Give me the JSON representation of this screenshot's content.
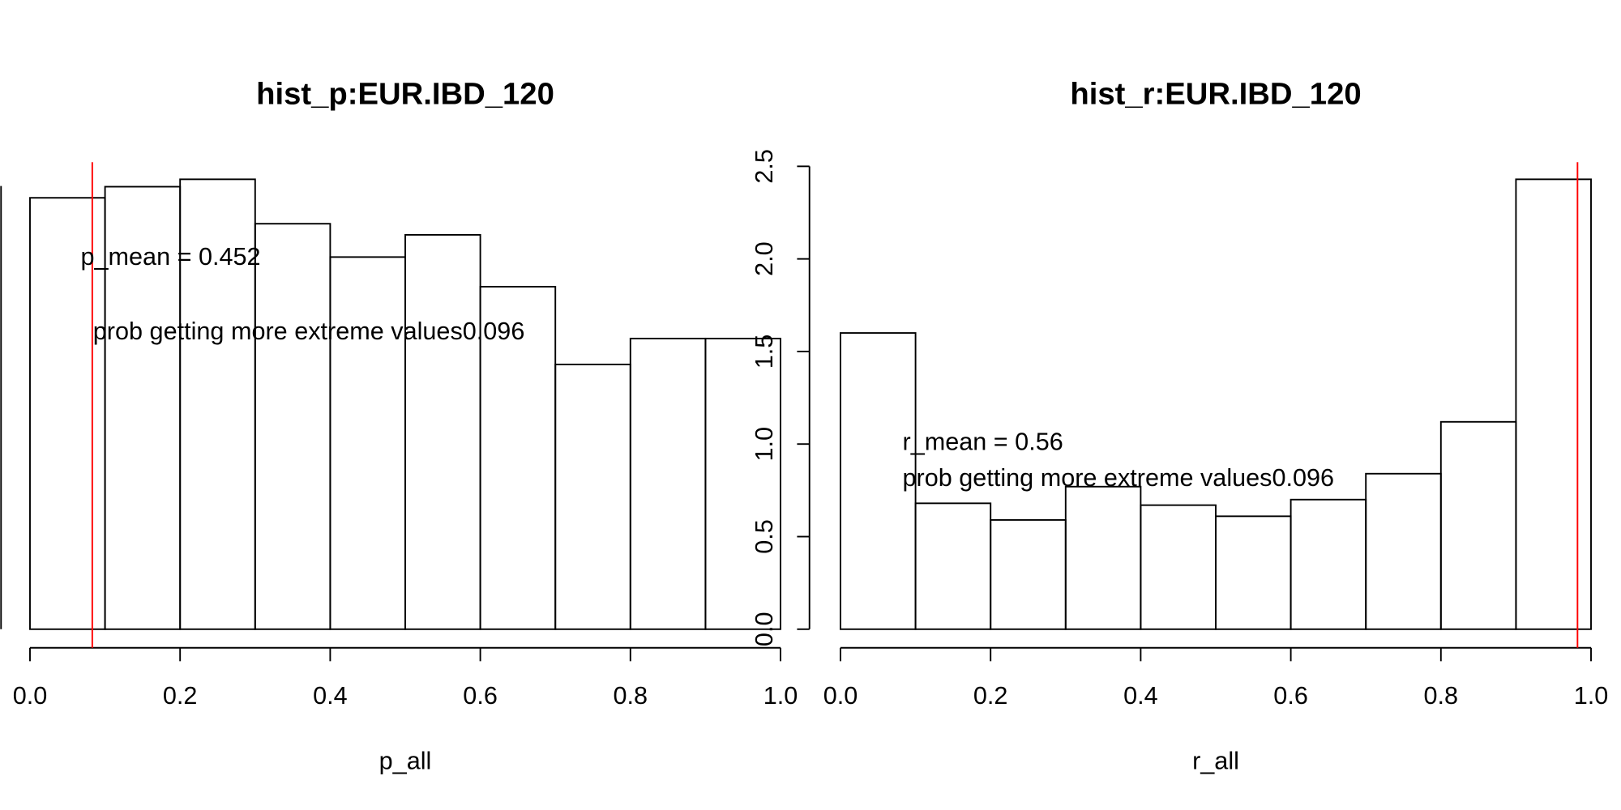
{
  "chart_data": [
    {
      "type": "histogram",
      "title": "hist_p:EUR.IBD_120",
      "xlabel": "p_all",
      "bins": [
        0,
        0.1,
        0.2,
        0.3,
        0.4,
        0.5,
        0.6,
        0.7,
        0.8,
        0.9,
        1.0
      ],
      "values": [
        2.33,
        2.39,
        2.43,
        2.19,
        2.01,
        2.13,
        1.85,
        1.43,
        1.57,
        1.57
      ],
      "edgecolor": "#000000",
      "xlim": [
        0,
        1
      ],
      "ylim": [
        0,
        2.5
      ],
      "xticks": [
        {
          "value": 0,
          "label": "0.0"
        },
        0.2,
        0.4,
        0.6,
        0.8,
        {
          "value": 1,
          "label": "1.0"
        }
      ],
      "vline": 0.083,
      "vline_color": "#ff0000",
      "annotations": [
        "p_mean = 0.452",
        "prob getting more extreme values0.096"
      ]
    },
    {
      "type": "histogram",
      "title": "hist_r:EUR.IBD_120",
      "xlabel": "r_all",
      "bins": [
        0,
        0.1,
        0.2,
        0.3,
        0.4,
        0.5,
        0.6,
        0.7,
        0.8,
        0.9,
        1.0
      ],
      "values": [
        1.6,
        0.68,
        0.59,
        0.77,
        0.67,
        0.61,
        0.7,
        0.84,
        1.12,
        2.43
      ],
      "edgecolor": "#000000",
      "xlim": [
        0,
        1
      ],
      "ylim": [
        0,
        2.5
      ],
      "xticks": [
        {
          "value": 0,
          "label": "0.0"
        },
        0.2,
        0.4,
        0.6,
        0.8,
        {
          "value": 1,
          "label": "1.0"
        }
      ],
      "yticks": [
        {
          "value": 0,
          "label": "0.0"
        },
        0.5,
        {
          "value": 1,
          "label": "1.0"
        },
        1.5,
        {
          "value": 2,
          "label": "2.0"
        },
        2.5
      ],
      "vline": 0.982,
      "vline_color": "#ff0000",
      "annotations": [
        "r_mean = 0.56",
        "prob getting more extreme values0.096"
      ]
    }
  ]
}
